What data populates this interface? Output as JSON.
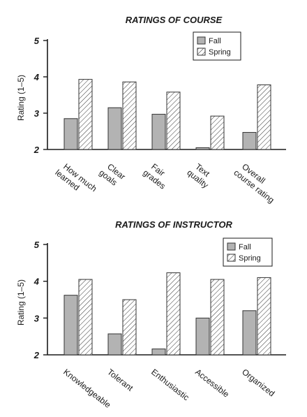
{
  "colors": {
    "fall_fill": "#b3b3b3",
    "spring_fill": "#ffffff",
    "spring_hatch": "#333333",
    "axis": "#1a1a1a",
    "bar_outline": "#333333"
  },
  "chart_data": [
    {
      "type": "bar",
      "title": "RATINGS OF COURSE",
      "xlabel": "",
      "ylabel": "Rating (1–5)",
      "ylim": [
        2,
        5
      ],
      "yticks": [
        "2",
        "3",
        "4",
        "5"
      ],
      "grid": false,
      "legend_placement": "top-right",
      "categories": [
        [
          "How much",
          "learned"
        ],
        [
          "Clear",
          "goals"
        ],
        [
          "Fair",
          "grades"
        ],
        [
          "Text",
          "quality"
        ],
        [
          "Overall",
          "course rating"
        ]
      ],
      "series": [
        {
          "name": "Fall",
          "values": [
            2.85,
            3.15,
            2.97,
            2.05,
            2.47
          ]
        },
        {
          "name": "Spring",
          "values": [
            3.93,
            3.86,
            3.58,
            2.92,
            3.78
          ]
        }
      ]
    },
    {
      "type": "bar",
      "title": "RATINGS OF INSTRUCTOR",
      "xlabel": "",
      "ylabel": "Rating (1–5)",
      "ylim": [
        2,
        5
      ],
      "yticks": [
        "2",
        "3",
        "4",
        "5"
      ],
      "grid": false,
      "legend_placement": "top-right",
      "categories": [
        [
          "Knowledgeable"
        ],
        [
          "Tolerant"
        ],
        [
          "Enthusiastic"
        ],
        [
          "Accessible"
        ],
        [
          "Organized"
        ]
      ],
      "series": [
        {
          "name": "Fall",
          "values": [
            3.62,
            2.57,
            2.16,
            3.0,
            3.2
          ]
        },
        {
          "name": "Spring",
          "values": [
            4.05,
            3.5,
            4.23,
            4.05,
            4.1
          ]
        }
      ]
    }
  ]
}
